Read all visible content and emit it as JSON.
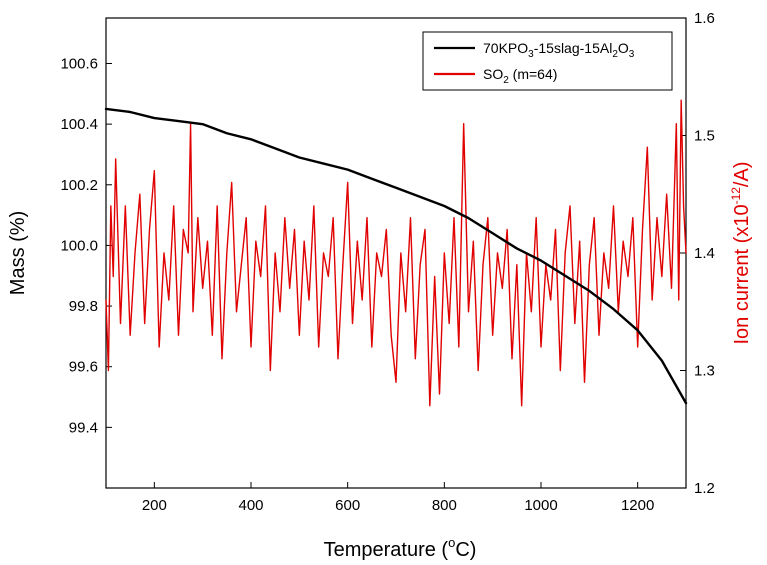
{
  "chart_data": {
    "type": "line",
    "xlabel": {
      "pre": "Temperature (",
      "sup": "o",
      "post": "C)"
    },
    "ylabel_left": "Mass (%)",
    "ylabel_right": {
      "pre": "Ion current (x10",
      "sup": "-12",
      "post": "/A)"
    },
    "xlim": [
      100,
      1300
    ],
    "ylim_left": [
      99.2,
      100.75
    ],
    "ylim_right": [
      1.2,
      1.6
    ],
    "x_ticks": [
      200,
      400,
      600,
      800,
      1000,
      1200
    ],
    "x_tick_labels": [
      "200",
      "400",
      "600",
      "800",
      "1000",
      "1200"
    ],
    "y_left_ticks": [
      99.4,
      99.6,
      99.8,
      100.0,
      100.2,
      100.4,
      100.6
    ],
    "y_left_tick_labels": [
      "99.4",
      "99.6",
      "99.8",
      "100.0",
      "100.2",
      "100.4",
      "100.6"
    ],
    "y_right_ticks": [
      1.2,
      1.3,
      1.4,
      1.5,
      1.6
    ],
    "y_right_tick_labels": [
      "1.2",
      "1.3",
      "1.4",
      "1.5",
      "1.6"
    ],
    "legend_position": "top-right",
    "series": [
      {
        "name": {
          "pre": "70KPO",
          "s1": "3",
          "mid": "-15slag-15Al",
          "s2": "2",
          "mid2": "O",
          "s3": "3",
          "post": ""
        },
        "axis": "left",
        "color": "#000000",
        "x": [
          100,
          150,
          200,
          250,
          300,
          350,
          400,
          450,
          500,
          550,
          600,
          650,
          700,
          750,
          800,
          850,
          900,
          950,
          1000,
          1050,
          1100,
          1150,
          1200,
          1250,
          1300
        ],
        "y": [
          100.45,
          100.44,
          100.42,
          100.41,
          100.4,
          100.37,
          100.35,
          100.32,
          100.29,
          100.27,
          100.25,
          100.22,
          100.19,
          100.16,
          100.13,
          100.09,
          100.04,
          99.99,
          99.95,
          99.9,
          99.85,
          99.79,
          99.72,
          99.62,
          99.48
        ]
      },
      {
        "name": {
          "pre": "SO",
          "s1": "2",
          "post": " (m=64)"
        },
        "axis": "right",
        "color": "#e00000",
        "x": [
          100,
          105,
          110,
          115,
          120,
          130,
          140,
          150,
          160,
          170,
          180,
          190,
          200,
          210,
          220,
          230,
          240,
          250,
          260,
          270,
          275,
          280,
          290,
          300,
          310,
          320,
          330,
          340,
          350,
          360,
          370,
          380,
          390,
          400,
          410,
          420,
          430,
          440,
          450,
          460,
          470,
          480,
          490,
          500,
          510,
          520,
          530,
          540,
          550,
          560,
          570,
          580,
          590,
          600,
          610,
          620,
          630,
          640,
          650,
          660,
          670,
          680,
          690,
          700,
          710,
          720,
          730,
          740,
          750,
          760,
          770,
          780,
          790,
          800,
          810,
          820,
          830,
          840,
          850,
          860,
          870,
          880,
          890,
          900,
          910,
          920,
          930,
          940,
          950,
          960,
          970,
          980,
          990,
          1000,
          1010,
          1020,
          1030,
          1040,
          1050,
          1060,
          1070,
          1080,
          1090,
          1100,
          1110,
          1120,
          1130,
          1140,
          1150,
          1160,
          1170,
          1180,
          1190,
          1200,
          1210,
          1220,
          1230,
          1240,
          1250,
          1260,
          1270,
          1280,
          1285,
          1290,
          1295,
          1300
        ],
        "y": [
          1.36,
          1.3,
          1.44,
          1.38,
          1.48,
          1.34,
          1.44,
          1.33,
          1.4,
          1.45,
          1.34,
          1.42,
          1.47,
          1.32,
          1.4,
          1.36,
          1.44,
          1.33,
          1.42,
          1.4,
          1.51,
          1.35,
          1.43,
          1.37,
          1.41,
          1.33,
          1.44,
          1.31,
          1.4,
          1.46,
          1.35,
          1.39,
          1.43,
          1.32,
          1.41,
          1.38,
          1.44,
          1.3,
          1.4,
          1.35,
          1.43,
          1.37,
          1.42,
          1.33,
          1.41,
          1.36,
          1.44,
          1.32,
          1.4,
          1.38,
          1.43,
          1.31,
          1.39,
          1.46,
          1.34,
          1.41,
          1.36,
          1.43,
          1.32,
          1.4,
          1.38,
          1.42,
          1.33,
          1.29,
          1.4,
          1.35,
          1.43,
          1.31,
          1.39,
          1.42,
          1.27,
          1.38,
          1.28,
          1.4,
          1.34,
          1.43,
          1.32,
          1.51,
          1.35,
          1.41,
          1.3,
          1.39,
          1.43,
          1.33,
          1.4,
          1.37,
          1.42,
          1.31,
          1.39,
          1.27,
          1.4,
          1.35,
          1.43,
          1.32,
          1.39,
          1.36,
          1.42,
          1.3,
          1.4,
          1.44,
          1.34,
          1.41,
          1.29,
          1.39,
          1.43,
          1.33,
          1.4,
          1.37,
          1.44,
          1.35,
          1.41,
          1.38,
          1.43,
          1.32,
          1.42,
          1.49,
          1.36,
          1.43,
          1.38,
          1.45,
          1.37,
          1.51,
          1.36,
          1.53,
          1.44,
          1.4
        ]
      }
    ]
  }
}
